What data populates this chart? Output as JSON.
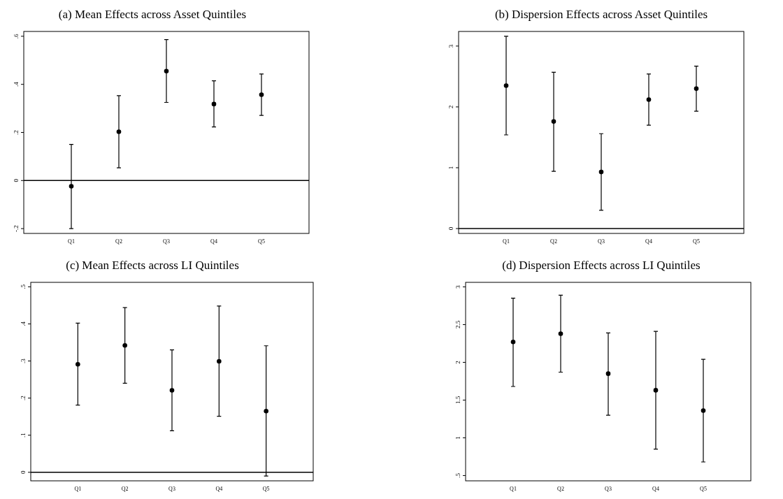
{
  "chart_data": [
    {
      "type": "scatter",
      "title": "(a) Mean Effects across Asset Quintiles",
      "categories": [
        "Q1",
        "Q2",
        "Q3",
        "Q4",
        "Q5"
      ],
      "values": [
        -0.024,
        0.203,
        0.455,
        0.318,
        0.357
      ],
      "errors": [
        [
          -0.2,
          0.15
        ],
        [
          0.053,
          0.353
        ],
        [
          0.325,
          0.586
        ],
        [
          0.223,
          0.415
        ],
        [
          0.271,
          0.443
        ]
      ],
      "color": "#000000",
      "marker": "circle",
      "ylim": [
        -0.22,
        0.62
      ],
      "yticks": [
        {
          "value": -0.2,
          "label": "-.2"
        },
        0,
        {
          "value": 0.2,
          "label": ".2"
        },
        {
          "value": 0.4,
          "label": ".4"
        },
        {
          "value": 0.6,
          "label": ".6"
        }
      ],
      "ref_lines": [
        {
          "axis": "y",
          "value": 0,
          "color": "#000000"
        }
      ]
    },
    {
      "type": "scatter",
      "title": "(b) Dispersion Effects across Asset Quintiles",
      "categories": [
        "Q1",
        "Q2",
        "Q3",
        "Q4",
        "Q5"
      ],
      "values": [
        2.35,
        1.76,
        0.93,
        2.12,
        2.3
      ],
      "errors": [
        [
          1.54,
          3.16
        ],
        [
          0.94,
          2.57
        ],
        [
          0.3,
          1.56
        ],
        [
          1.7,
          2.54
        ],
        [
          1.93,
          2.67
        ]
      ],
      "color": "#000000",
      "marker": "circle",
      "ylim": [
        -0.08,
        3.24
      ],
      "yticks": [
        0,
        1,
        2,
        3
      ],
      "ref_lines": [
        {
          "axis": "y",
          "value": 0,
          "color": "#000000"
        }
      ]
    },
    {
      "type": "scatter",
      "title": "(c) Mean Effects across LI Quintiles",
      "categories": [
        "Q1",
        "Q2",
        "Q3",
        "Q4",
        "Q5"
      ],
      "values": [
        0.291,
        0.342,
        0.221,
        0.299,
        0.165
      ],
      "errors": [
        [
          0.181,
          0.402
        ],
        [
          0.24,
          0.444
        ],
        [
          0.112,
          0.33
        ],
        [
          0.151,
          0.448
        ],
        [
          -0.01,
          0.341
        ]
      ],
      "color": "#000000",
      "marker": "circle",
      "ylim": [
        -0.023,
        0.512
      ],
      "yticks": [
        0,
        {
          "value": 0.1,
          "label": ".1"
        },
        {
          "value": 0.2,
          "label": ".2"
        },
        {
          "value": 0.3,
          "label": ".3"
        },
        {
          "value": 0.4,
          "label": ".4"
        },
        {
          "value": 0.5,
          "label": ".5"
        }
      ],
      "ref_lines": [
        {
          "axis": "y",
          "value": 0,
          "color": "#000000"
        }
      ]
    },
    {
      "type": "scatter",
      "title": "(d) Dispersion Effects across LI Quintiles",
      "categories": [
        "Q1",
        "Q2",
        "Q3",
        "Q4",
        "Q5"
      ],
      "values": [
        2.27,
        2.38,
        1.85,
        1.63,
        1.36
      ],
      "errors": [
        [
          1.68,
          2.85
        ],
        [
          1.87,
          2.89
        ],
        [
          1.3,
          2.39
        ],
        [
          0.85,
          2.41
        ],
        [
          0.68,
          2.04
        ]
      ],
      "color": "#000000",
      "marker": "circle",
      "ylim": [
        0.43,
        3.06
      ],
      "yticks": [
        {
          "value": 0.5,
          "label": ".5"
        },
        1,
        1.5,
        2,
        2.5,
        3
      ]
    }
  ]
}
